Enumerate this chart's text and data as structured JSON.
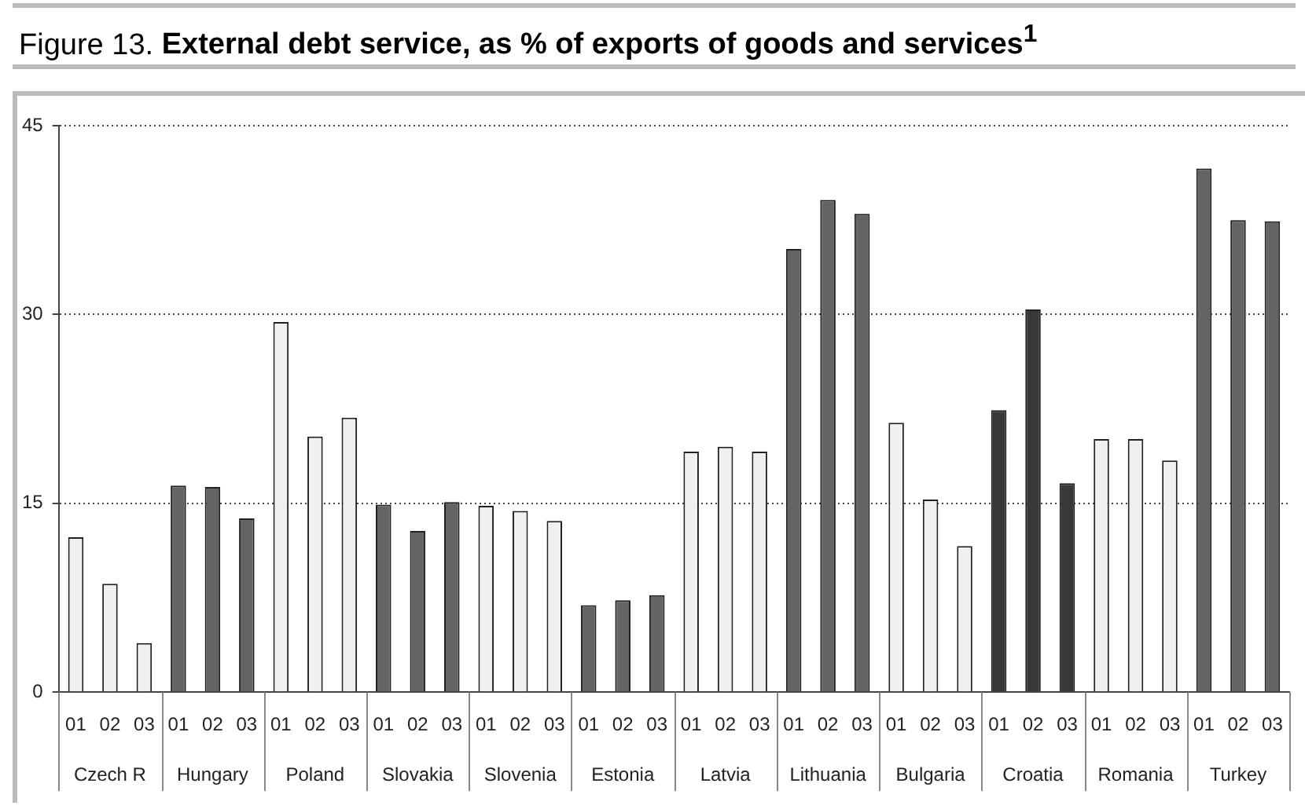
{
  "chart_data": {
    "type": "bar",
    "title": "Figure 13. External debt service, as % of exports of goods and services$^{1}$",
    "categories": [
      "01",
      "02",
      "03",
      "01",
      "02",
      "03",
      "01",
      "02",
      "03",
      "01",
      "02",
      "03",
      "01",
      "02",
      "03",
      "01",
      "02",
      "03",
      "01",
      "02",
      "03",
      "01",
      "02",
      "03",
      "01",
      "02",
      "03",
      "01",
      "02",
      "03",
      "01",
      "02",
      "03",
      "01",
      "02",
      "03"
    ],
    "values": [
      12.3,
      8.6,
      3.9,
      16.4,
      16.3,
      13.8,
      29.4,
      20.3,
      21.8,
      14.9,
      12.8,
      15.1,
      14.8,
      14.4,
      13.6,
      6.9,
      7.3,
      7.7,
      19.1,
      19.5,
      19.1,
      35.2,
      39.1,
      38.0,
      21.4,
      15.3,
      11.6,
      22.4,
      30.4,
      16.6,
      20.1,
      20.1,
      18.4,
      41.6,
      37.5,
      37.4
    ],
    "colors": [
      "#f0f0f0",
      "#f0f0f0",
      "#f0f0f0",
      "#646464",
      "#646464",
      "#646464",
      "#f0f0f0",
      "#f0f0f0",
      "#f0f0f0",
      "#646464",
      "#646464",
      "#646464",
      "#f0f0f0",
      "#f0f0f0",
      "#f0f0f0",
      "#646464",
      "#646464",
      "#646464",
      "#f0f0f0",
      "#f0f0f0",
      "#f0f0f0",
      "#646464",
      "#646464",
      "#646464",
      "#f0f0f0",
      "#f0f0f0",
      "#f0f0f0",
      "#383838",
      "#383838",
      "#383838",
      "#f0f0f0",
      "#f0f0f0",
      "#f0f0f0",
      "#646464",
      "#646464",
      "#646464"
    ],
    "annotations": [
      "Czech R",
      "Hungary",
      "Poland",
      "Slovakia",
      "Slovenia",
      "Estonia",
      "Latvia",
      "Lithuania",
      "Bulgaria",
      "Croatia",
      "Romania",
      "Turkey"
    ],
    "ylim": [
      0,
      45
    ],
    "yticks": [
      0,
      15,
      30,
      45
    ],
    "grid": "y",
    "legend": false
  }
}
